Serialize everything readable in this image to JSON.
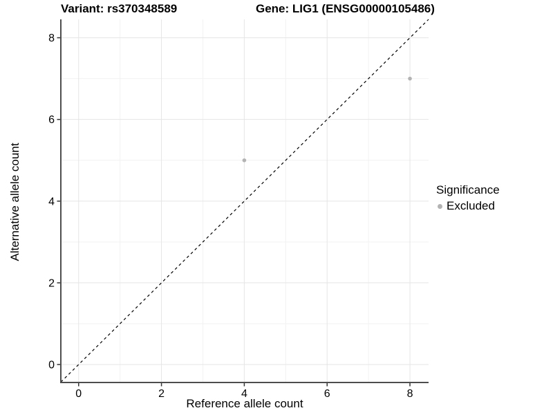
{
  "chart_data": {
    "type": "scatter",
    "titles": {
      "left": "Variant: rs370348589",
      "right": "Gene: LIG1 (ENSG00000105486)"
    },
    "xlabel": "Reference allele count",
    "ylabel": "Alternative allele count",
    "x_ticks": [
      0,
      2,
      4,
      6,
      8
    ],
    "y_ticks": [
      0,
      2,
      4,
      6,
      8
    ],
    "xlim": [
      -0.43,
      8.45
    ],
    "ylim": [
      -0.44,
      8.45
    ],
    "grid": "major+minor",
    "legend_position": "right",
    "identity_line": {
      "style": "dashed",
      "color": "#000000",
      "from": [
        -0.43,
        -0.43
      ],
      "to": [
        8.45,
        8.45
      ]
    },
    "series": [
      {
        "name": "Excluded",
        "color": "#b3b3b3",
        "points": [
          {
            "x": 4,
            "y": 5
          },
          {
            "x": 8,
            "y": 7
          }
        ]
      }
    ],
    "legend": {
      "title": "Significance",
      "items": [
        {
          "label": "Excluded",
          "color": "#b3b3b3"
        }
      ]
    },
    "colors": {
      "grid_major": "#e5e5e5",
      "grid_minor": "#f2f2f2",
      "axis_line": "#4d4d4d",
      "tick": "#333333",
      "text": "#000000",
      "background": "#ffffff"
    }
  }
}
